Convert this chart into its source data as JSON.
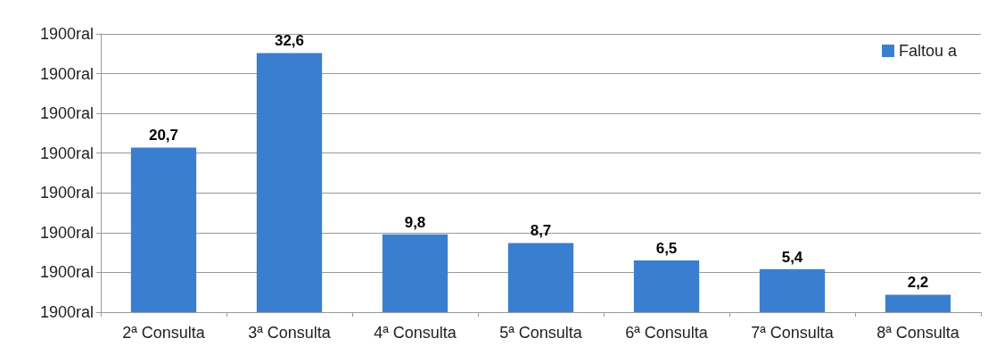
{
  "chart_data": {
    "type": "bar",
    "categories": [
      "2ª Consulta",
      "3ª Consulta",
      "4ª Consulta",
      "5ª Consulta",
      "6ª Consulta",
      "7ª Consulta",
      "8ª Consulta"
    ],
    "series": [
      {
        "name": "Faltou a",
        "color": "#3a7fcf",
        "values": [
          20.7,
          32.6,
          9.8,
          8.7,
          6.5,
          5.4,
          2.2
        ],
        "value_labels": [
          "20,7",
          "32,6",
          "9,8",
          "8,7",
          "6,5",
          "5,4",
          "2,2"
        ]
      }
    ],
    "ylim": [
      0,
      35
    ],
    "annotations": [
      "1900ral",
      "1900ral",
      "1900ral",
      "1900ral",
      "1900ral",
      "1900ral",
      "1900ral",
      "1900ral"
    ],
    "grid": "y",
    "legend": "top right"
  }
}
